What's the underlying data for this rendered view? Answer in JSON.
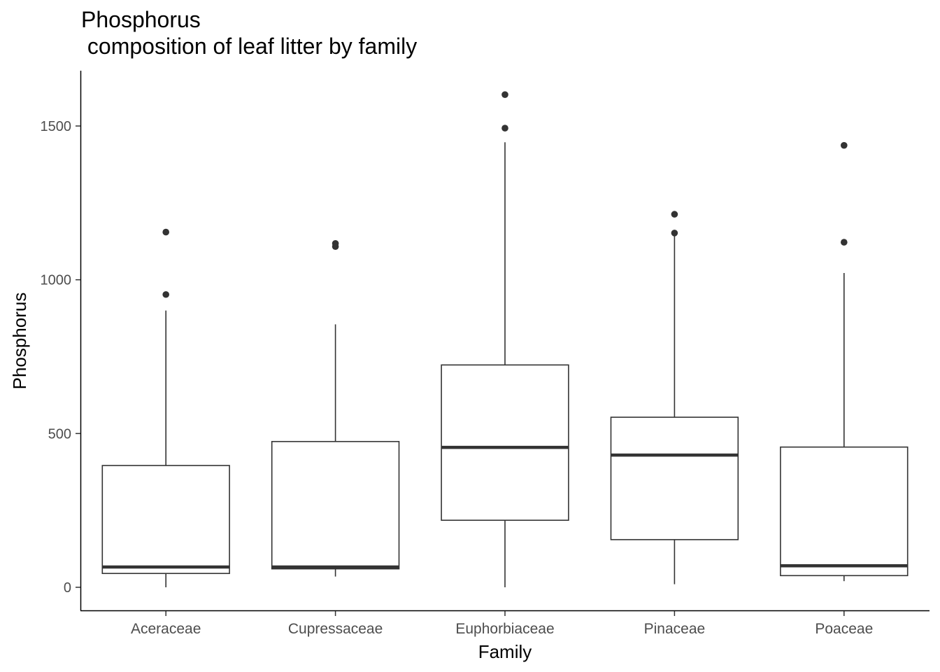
{
  "chart_data": {
    "type": "box",
    "title_lines": [
      "Phosphorus",
      " composition of leaf litter by family"
    ],
    "xlabel": "Family",
    "ylabel": "Phosphorus",
    "ylim": [
      -75,
      1675
    ],
    "yticks": [
      0,
      500,
      1000,
      1500
    ],
    "grid": false,
    "categories": [
      "Aceraceae",
      "Cupressaceae",
      "Euphorbiaceae",
      "Pinaceae",
      "Poaceae"
    ],
    "boxes": [
      {
        "category": "Aceraceae",
        "whisker_low": 0,
        "q1": 45,
        "median": 66,
        "q3": 396,
        "whisker_high": 900,
        "outliers": [
          952,
          1155
        ]
      },
      {
        "category": "Cupressaceae",
        "whisker_low": 35,
        "q1": 60,
        "median": 66,
        "q3": 474,
        "whisker_high": 855,
        "outliers": [
          1108,
          1118
        ]
      },
      {
        "category": "Euphorbiaceae",
        "whisker_low": 0,
        "q1": 218,
        "median": 455,
        "q3": 723,
        "whisker_high": 1447,
        "outliers": [
          1493,
          1602
        ]
      },
      {
        "category": "Pinaceae",
        "whisker_low": 10,
        "q1": 155,
        "median": 430,
        "q3": 553,
        "whisker_high": 1143,
        "outliers": [
          1152,
          1213
        ]
      },
      {
        "category": "Poaceae",
        "whisker_low": 20,
        "q1": 38,
        "median": 70,
        "q3": 456,
        "whisker_high": 1022,
        "outliers": [
          1122,
          1437
        ]
      }
    ]
  }
}
